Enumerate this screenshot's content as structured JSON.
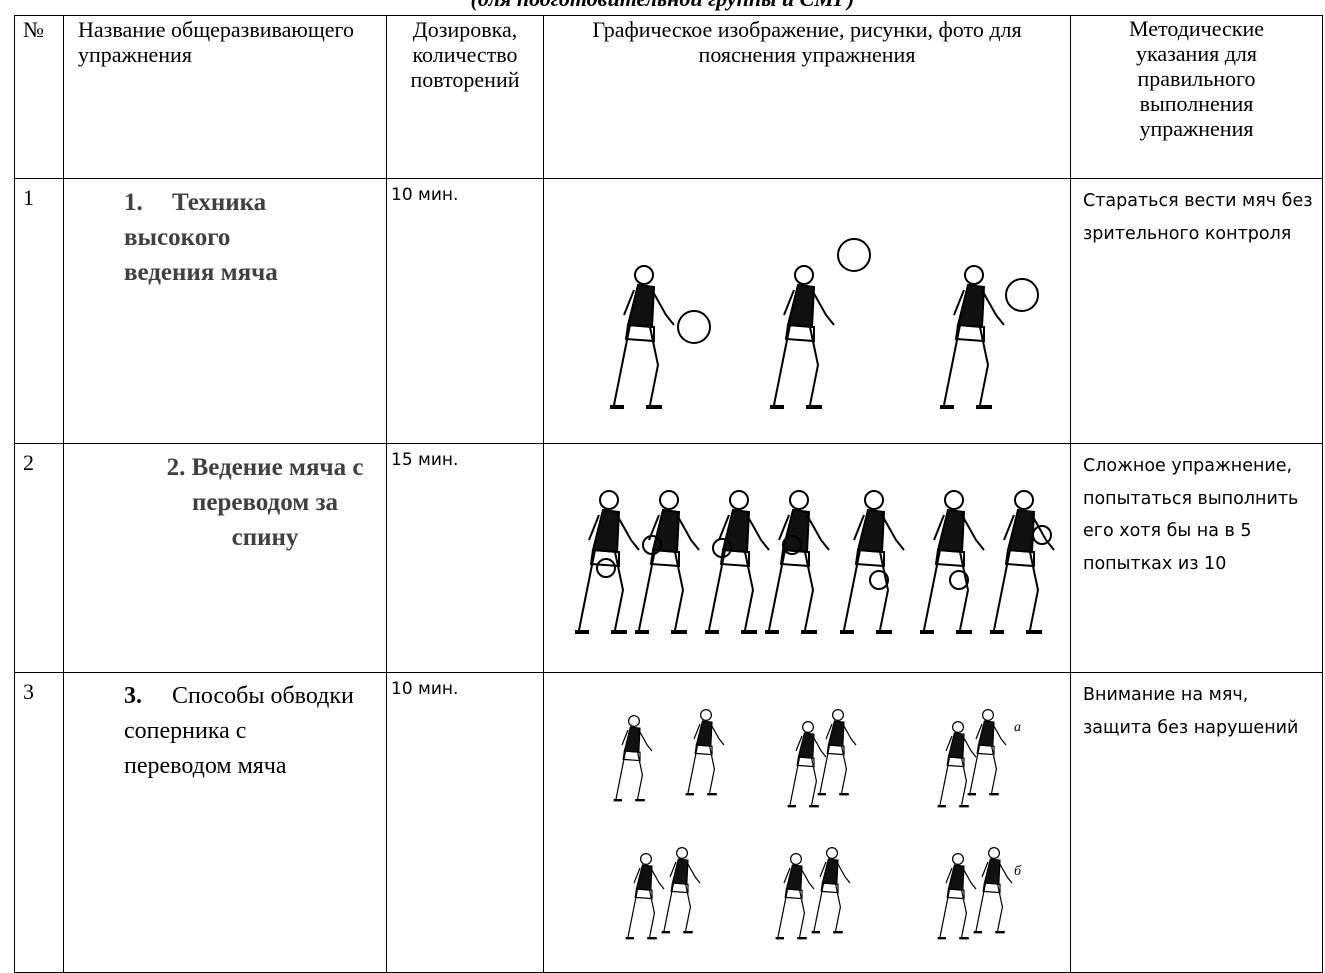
{
  "caption": "(для подготовительной группы и СМГ)",
  "table": {
    "headers": [
      "№",
      "Название общеразвивающего упражнения",
      "Дозировка, количество повторений",
      "Графическое изображение, рисунки, фото для пояснения упражнения",
      "Методические указания для правильного выполнения упражнения"
    ],
    "rows": [
      {
        "number": "1",
        "item_number": "1.",
        "name": "Техника высокого ведения мяча",
        "dosage": "10 мин.",
        "notes": "Стараться вести мяч без зрительного контроля"
      },
      {
        "number": "2",
        "item_number": "2.",
        "name": "Ведение мяча с переводом за спину",
        "dosage": "15 мин.",
        "notes": "Сложное упражнение, попытаться выполнить его хотя бы на в 5 попытках из 10"
      },
      {
        "number": "3",
        "item_number": "3.",
        "name": "Способы обводки соперника с переводом мяча",
        "dosage": "10 мин.",
        "notes": "Внимание на мяч, защита без нарушений"
      }
    ],
    "figure_labels": [
      "а",
      "б"
    ]
  }
}
